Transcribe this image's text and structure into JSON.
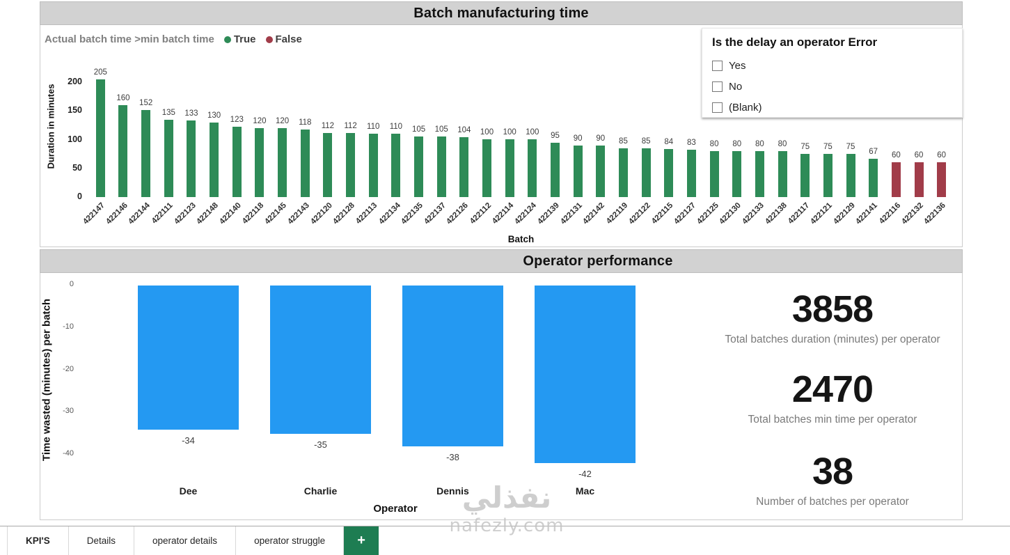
{
  "watermark": {
    "line1": "نفذلي",
    "line2": "nafezly.com"
  },
  "filter_panel": {
    "title": "Is the delay an operator Error",
    "options": [
      {
        "label": "Yes",
        "checked": false
      },
      {
        "label": "No",
        "checked": false
      },
      {
        "label": "(Blank)",
        "checked": false
      }
    ]
  },
  "kpis": [
    {
      "value": "3858",
      "label": "Total batches duration (minutes) per operator"
    },
    {
      "value": "2470",
      "label": "Total batches min time per operator"
    },
    {
      "value": "38",
      "label": "Number of batches per operator"
    }
  ],
  "tabs": {
    "items": [
      {
        "label": "KPI'S",
        "active": true
      },
      {
        "label": "Details",
        "active": false
      },
      {
        "label": "operator details",
        "active": false
      },
      {
        "label": "operator struggle",
        "active": false
      }
    ],
    "add_button": "+"
  },
  "chart_data": [
    {
      "type": "bar",
      "title": "Batch manufacturing time",
      "legend_title": "Actual batch time >min batch time",
      "legend": [
        {
          "name": "True",
          "color": "#2e8b57"
        },
        {
          "name": "False",
          "color": "#a13c49"
        }
      ],
      "legend_position": "top-left",
      "xlabel": "Batch",
      "ylabel": "Duration in minutes",
      "yticks": [
        0,
        50,
        100,
        150,
        200
      ],
      "ylim": [
        0,
        210
      ],
      "grid": false,
      "categories": [
        "422147",
        "422146",
        "422144",
        "422111",
        "422123",
        "422148",
        "422140",
        "422118",
        "422145",
        "422143",
        "422120",
        "422128",
        "422113",
        "422134",
        "422135",
        "422137",
        "422126",
        "422112",
        "422114",
        "422124",
        "422139",
        "422131",
        "422142",
        "422119",
        "422122",
        "422115",
        "422127",
        "422125",
        "422130",
        "422133",
        "422138",
        "422117",
        "422121",
        "422129",
        "422141",
        "422116",
        "422132",
        "422136"
      ],
      "values": [
        205,
        160,
        152,
        135,
        133,
        130,
        123,
        120,
        120,
        118,
        112,
        112,
        110,
        110,
        105,
        105,
        104,
        100,
        100,
        100,
        95,
        90,
        90,
        85,
        85,
        84,
        83,
        80,
        80,
        80,
        80,
        75,
        75,
        75,
        67,
        60,
        60,
        60
      ],
      "flags": [
        "True",
        "True",
        "True",
        "True",
        "True",
        "True",
        "True",
        "True",
        "True",
        "True",
        "True",
        "True",
        "True",
        "True",
        "True",
        "True",
        "True",
        "True",
        "True",
        "True",
        "True",
        "True",
        "True",
        "True",
        "True",
        "True",
        "True",
        "True",
        "True",
        "True",
        "True",
        "True",
        "True",
        "True",
        "True",
        "False",
        "False",
        "False"
      ]
    },
    {
      "type": "bar",
      "title": "Operator performance",
      "xlabel": "Operator",
      "ylabel": "Time wasted (minutes) per batch",
      "yticks": [
        0,
        -10,
        -20,
        -30,
        -40
      ],
      "ylim": [
        -45,
        0
      ],
      "grid": false,
      "color": "#2499f2",
      "categories": [
        "Dee",
        "Charlie",
        "Dennis",
        "Mac"
      ],
      "values": [
        -34,
        -35,
        -38,
        -42
      ]
    }
  ]
}
